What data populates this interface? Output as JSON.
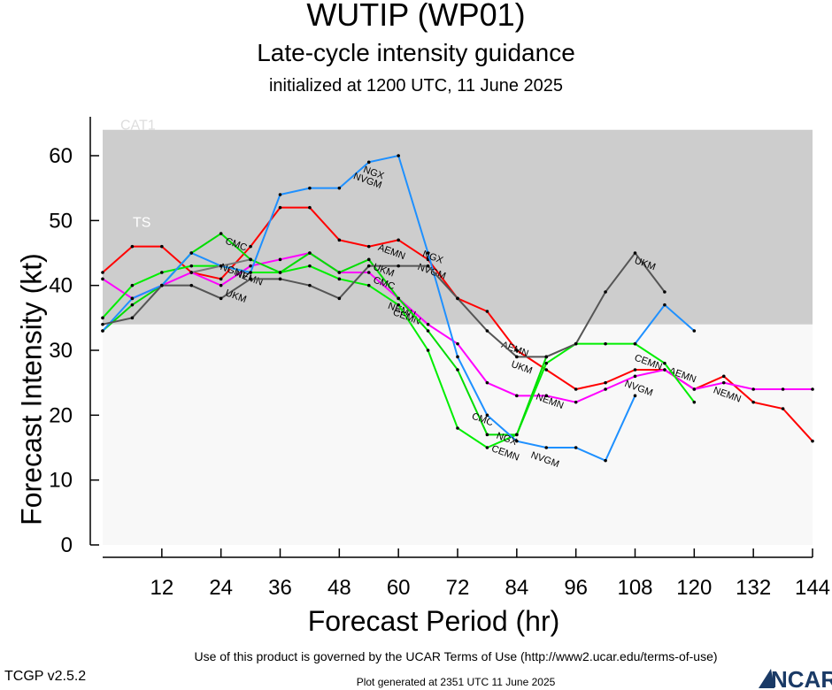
{
  "header": {
    "title": "WUTIP (WP01)",
    "subtitle": "Late-cycle intensity guidance",
    "initialized": "initialized at 1200 UTC, 11 June 2025"
  },
  "footer": {
    "terms": "Use of this product is governed by the UCAR Terms of Use (http://www2.ucar.edu/terms-of-use)",
    "version": "TCGP v2.5.2",
    "generated": "Plot generated at 2351 UTC   11 June 2025",
    "logo_text": "NCAR"
  },
  "chart_data": {
    "type": "line",
    "xlabel": "Forecast Period (hr)",
    "ylabel": "Forecast Intensity (kt)",
    "xlim": [
      0,
      144
    ],
    "ylim": [
      0,
      66
    ],
    "xticks": [
      12,
      24,
      36,
      48,
      60,
      72,
      84,
      96,
      108,
      120,
      132,
      144
    ],
    "yticks": [
      0,
      10,
      20,
      30,
      40,
      50,
      60
    ],
    "bands": [
      {
        "label": "TS",
        "from": 34,
        "to": 64,
        "color": "#cdcdcd"
      },
      {
        "label": "CAT1",
        "from": 64,
        "to": 66,
        "color": "#ffffff"
      }
    ],
    "below_band_color": "#f8f8f8",
    "series": [
      {
        "name": "AEMN",
        "color": "#ff0000",
        "x": [
          0,
          6,
          12,
          18,
          24,
          30,
          36,
          42,
          48,
          54,
          60,
          66,
          72,
          78,
          84,
          90,
          96,
          102,
          108,
          114,
          120,
          126,
          132,
          138,
          144
        ],
        "y": [
          42,
          46,
          46,
          42,
          41,
          46,
          52,
          52,
          47,
          46,
          47,
          44,
          38,
          36,
          30,
          27,
          24,
          25,
          27,
          27,
          24,
          26,
          22,
          21,
          16
        ],
        "labels": [
          {
            "text": "AEMN",
            "x": 56,
            "y": 46
          },
          {
            "text": "AEMN",
            "x": 81,
            "y": 31
          },
          {
            "text": "AEMN",
            "x": 115,
            "y": 27
          }
        ]
      },
      {
        "name": "NEMN",
        "color": "#ff00ff",
        "x": [
          0,
          6,
          12,
          18,
          24,
          30,
          36,
          42,
          48,
          54,
          60,
          66,
          72,
          78,
          84,
          90,
          96,
          102,
          108,
          114,
          120,
          126,
          132,
          138,
          144
        ],
        "y": [
          41,
          38,
          40,
          42,
          40,
          43,
          44,
          45,
          42,
          42,
          38,
          34,
          31,
          25,
          23,
          23,
          22,
          24,
          26,
          27,
          24,
          25,
          24,
          24,
          24
        ],
        "labels": [
          {
            "text": "NEMN",
            "x": 27,
            "y": 42
          },
          {
            "text": "NEMN",
            "x": 58,
            "y": 37
          },
          {
            "text": "NEMN",
            "x": 88,
            "y": 23
          },
          {
            "text": "NEMN",
            "x": 124,
            "y": 24
          }
        ]
      },
      {
        "name": "CEMN",
        "color": "#00ee00",
        "x": [
          0,
          6,
          12,
          18,
          24,
          30,
          36,
          42,
          48,
          54,
          60,
          66,
          72,
          78,
          84,
          90,
          96,
          102,
          108,
          114,
          120
        ],
        "y": [
          35,
          40,
          42,
          43,
          43,
          42,
          42,
          43,
          41,
          40,
          37,
          30,
          18,
          15,
          17,
          28,
          31,
          31,
          31,
          28,
          22
        ],
        "labels": [
          {
            "text": "CEMN",
            "x": 59,
            "y": 36
          },
          {
            "text": "CEMN",
            "x": 79,
            "y": 15
          },
          {
            "text": "CEMN",
            "x": 108,
            "y": 29
          }
        ]
      },
      {
        "name": "CMC",
        "color": "#00dd00",
        "x": [
          0,
          6,
          12,
          18,
          24,
          30,
          36,
          42,
          48,
          54,
          60,
          66,
          72,
          78,
          84,
          90
        ],
        "y": [
          33,
          37,
          40,
          45,
          48,
          44,
          42,
          45,
          42,
          44,
          38,
          33,
          27,
          17,
          17,
          29
        ],
        "labels": [
          {
            "text": "CMC",
            "x": 25,
            "y": 47
          },
          {
            "text": "CMC",
            "x": 55,
            "y": 41
          },
          {
            "text": "CMC",
            "x": 75,
            "y": 20
          }
        ]
      },
      {
        "name": "NVGM",
        "color": "#1e90ff",
        "x": [
          0,
          6,
          12,
          18,
          24,
          30,
          36,
          42,
          48,
          54,
          60,
          66,
          72,
          78,
          84,
          90,
          96,
          102,
          108
        ],
        "y": [
          33,
          38,
          40,
          45,
          43,
          42,
          54,
          55,
          55,
          59,
          60,
          45,
          29,
          20,
          16,
          15,
          15,
          13,
          23
        ],
        "labels": [
          {
            "text": "NVGM",
            "x": 51,
            "y": 57
          },
          {
            "text": "NVGM",
            "x": 64,
            "y": 43
          },
          {
            "text": "NVGM",
            "x": 87,
            "y": 14
          },
          {
            "text": "NVGM",
            "x": 106,
            "y": 25
          }
        ]
      },
      {
        "name": "NGX",
        "color": "#1e90ff",
        "x": [
          108,
          114,
          120
        ],
        "y": [
          31,
          37,
          33
        ],
        "labels": [
          {
            "text": "NGX",
            "x": 53,
            "y": 58
          },
          {
            "text": "NGX",
            "x": 65,
            "y": 45
          },
          {
            "text": "NGX",
            "x": 80,
            "y": 17
          }
        ]
      },
      {
        "name": "UKM",
        "color": "#555555",
        "x": [
          0,
          6,
          12,
          18,
          24,
          30,
          36,
          42,
          48,
          54,
          60,
          66,
          72,
          78,
          84,
          90,
          96,
          102,
          108,
          114
        ],
        "y": [
          34,
          35,
          40,
          40,
          38,
          41,
          41,
          40,
          38,
          43,
          43,
          43,
          38,
          33,
          29,
          29,
          31,
          39,
          45,
          39
        ],
        "labels": [
          {
            "text": "UKM",
            "x": 25,
            "y": 39
          },
          {
            "text": "UKM",
            "x": 55,
            "y": 43
          },
          {
            "text": "UKM",
            "x": 83,
            "y": 28
          },
          {
            "text": "UKM",
            "x": 108,
            "y": 44
          }
        ]
      },
      {
        "name": "NGMV",
        "color": "#777777",
        "x": [
          18,
          24,
          30
        ],
        "y": [
          42,
          43,
          44
        ],
        "labels": [
          {
            "text": "NGMV",
            "x": 24,
            "y": 43
          }
        ]
      }
    ]
  }
}
